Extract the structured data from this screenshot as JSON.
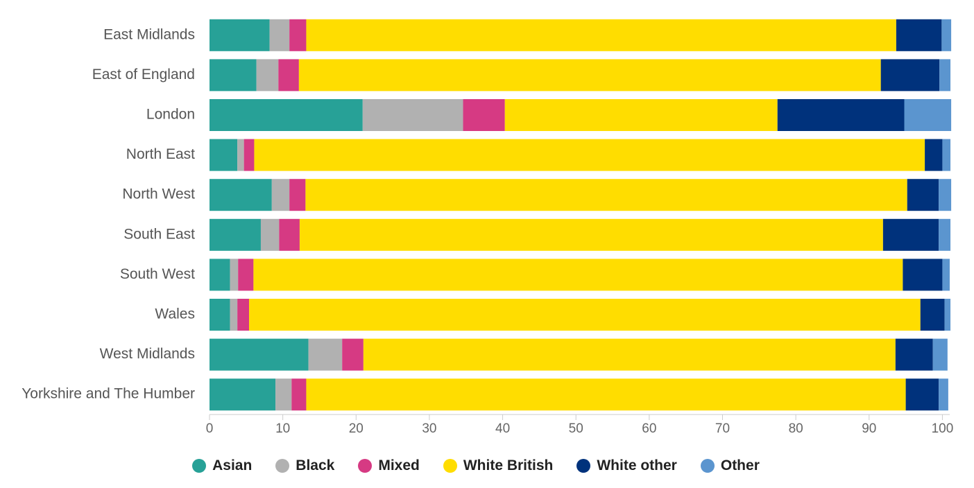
{
  "chart_data": {
    "type": "stacked-bar",
    "orientation": "horizontal",
    "categories": [
      "East Midlands",
      "East of England",
      "London",
      "North East",
      "North West",
      "South East",
      "South West",
      "Wales",
      "West Midlands",
      "Yorkshire and The Humber"
    ],
    "series": [
      {
        "name": "Asian",
        "color": "#27a197",
        "values": [
          8.2,
          6.4,
          20.9,
          3.8,
          8.5,
          7.0,
          2.8,
          2.8,
          13.5,
          9.0
        ]
      },
      {
        "name": "Black",
        "color": "#b1b1b1",
        "values": [
          2.7,
          3.0,
          13.7,
          0.9,
          2.4,
          2.5,
          1.1,
          1.0,
          4.6,
          2.2
        ]
      },
      {
        "name": "Mixed",
        "color": "#d63a83",
        "values": [
          2.3,
          2.8,
          5.7,
          1.4,
          2.2,
          2.8,
          2.1,
          1.6,
          2.9,
          2.0
        ]
      },
      {
        "name": "White British",
        "color": "#ffdd00",
        "values": [
          80.5,
          79.4,
          37.2,
          91.5,
          82.1,
          79.6,
          88.6,
          91.6,
          72.6,
          81.8
        ]
      },
      {
        "name": "White other",
        "color": "#00327c",
        "values": [
          6.2,
          8.0,
          17.3,
          2.4,
          4.3,
          7.6,
          5.4,
          3.3,
          5.1,
          4.5
        ]
      },
      {
        "name": "Other",
        "color": "#5b95cf",
        "values": [
          1.3,
          1.5,
          6.4,
          1.1,
          1.7,
          1.6,
          1.0,
          0.8,
          2.0,
          1.3
        ]
      }
    ],
    "xlim": [
      0,
      101
    ],
    "xticks": [
      0,
      10,
      20,
      30,
      40,
      50,
      60,
      70,
      80,
      90,
      100
    ],
    "grid": false
  }
}
